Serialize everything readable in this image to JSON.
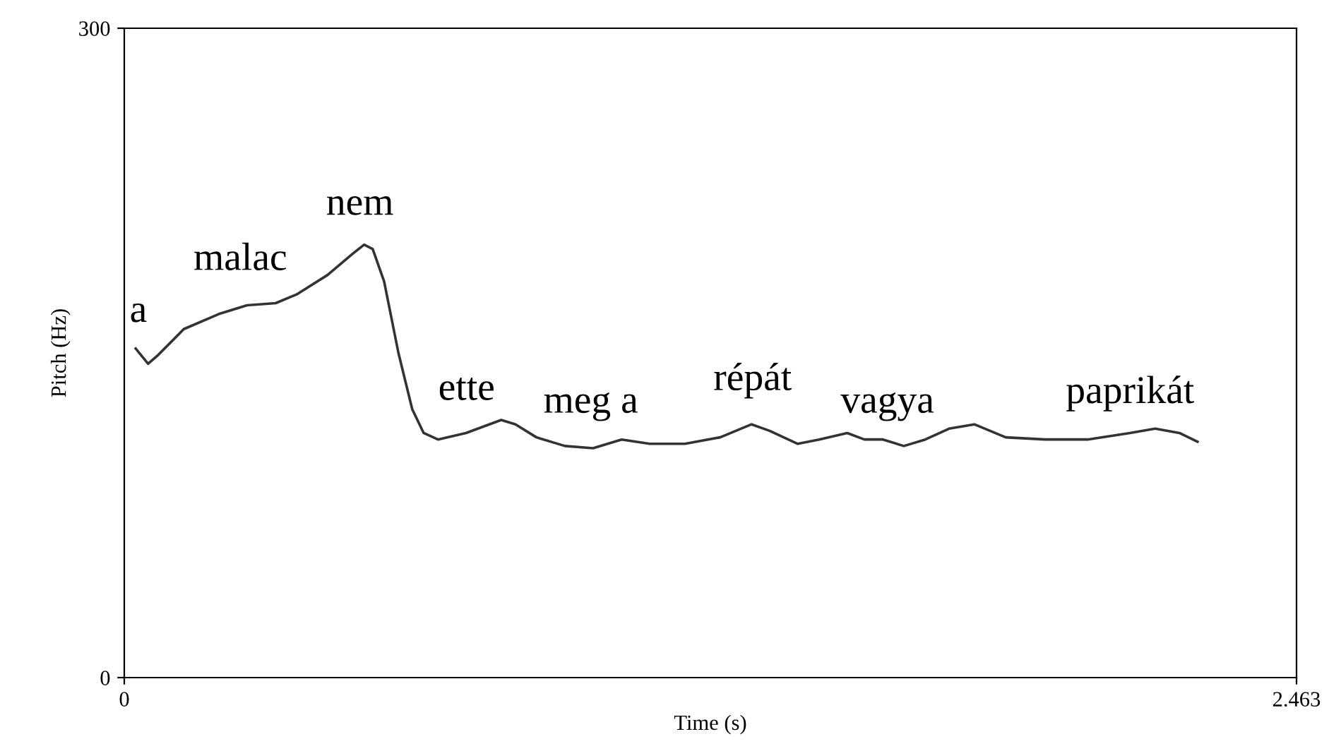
{
  "chart_data": {
    "type": "line",
    "xlabel": "Time (s)",
    "ylabel": "Pitch (Hz)",
    "xlim": [
      0,
      2.463
    ],
    "xticks": [
      0,
      2.463
    ],
    "ylim": [
      0,
      300
    ],
    "yticks": [
      0,
      300
    ],
    "grid": false,
    "legend": false,
    "marker": "none",
    "line_style": "solid",
    "series": [
      {
        "color": "#333333",
        "x": [
          0.024,
          0.05,
          0.071,
          0.125,
          0.199,
          0.258,
          0.318,
          0.362,
          0.427,
          0.481,
          0.504,
          0.522,
          0.546,
          0.576,
          0.605,
          0.629,
          0.659,
          0.718,
          0.792,
          0.822,
          0.866,
          0.926,
          0.985,
          1.045,
          1.104,
          1.178,
          1.252,
          1.318,
          1.356,
          1.415,
          1.46,
          1.519,
          1.555,
          1.594,
          1.638,
          1.683,
          1.733,
          1.786,
          1.852,
          1.935,
          2.024,
          2.113,
          2.166,
          2.217,
          2.255
        ],
        "values": [
          152,
          145,
          149,
          161,
          168,
          172,
          173,
          177,
          186,
          196,
          200,
          198,
          183,
          150,
          124,
          113,
          110,
          113,
          119,
          117,
          111,
          107,
          106,
          110,
          108,
          108,
          111,
          117,
          114,
          108,
          110,
          113,
          110,
          110,
          107,
          110,
          115,
          117,
          111,
          110,
          110,
          113,
          115,
          113,
          109
        ]
      }
    ],
    "annotations": [
      "a",
      "malac",
      "nem",
      "ette",
      "meg a",
      "répát",
      "vagya",
      "paprikát"
    ]
  }
}
